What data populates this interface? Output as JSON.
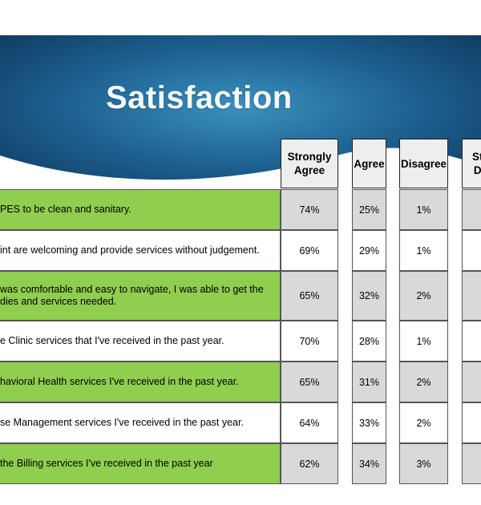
{
  "slide": {
    "title": "Satisfaction",
    "colors": {
      "banner_dark": "#0f3b63",
      "banner_mid": "#2a79a8",
      "row_green": "#8fce4f",
      "cell_gray": "#d9d9d9"
    }
  },
  "table": {
    "headers": [
      "Strongly\nAgree",
      "Agree",
      "Disagree",
      "St\nD"
    ],
    "rows": [
      {
        "statement": "PES to be clean and sanitary.",
        "values": [
          "74%",
          "25%",
          "1%",
          ""
        ]
      },
      {
        "statement": "int are welcoming and provide services without judgement.",
        "values": [
          "69%",
          "29%",
          "1%",
          ""
        ]
      },
      {
        "statement": "was comfortable and easy to navigate, I was able to get the\ndies and services needed.",
        "values": [
          "65%",
          "32%",
          "2%",
          ""
        ]
      },
      {
        "statement": "e Clinic services that I've received in the past year.",
        "values": [
          "70%",
          "28%",
          "1%",
          ""
        ]
      },
      {
        "statement": "havioral Health services I've received in the past year.",
        "values": [
          "65%",
          "31%",
          "2%",
          ""
        ]
      },
      {
        "statement": "se Management services I've received in the past year.",
        "values": [
          "64%",
          "33%",
          "2%",
          ""
        ]
      },
      {
        "statement": "the Billing services I've received in the past year",
        "values": [
          "62%",
          "34%",
          "3%",
          ""
        ]
      }
    ]
  }
}
